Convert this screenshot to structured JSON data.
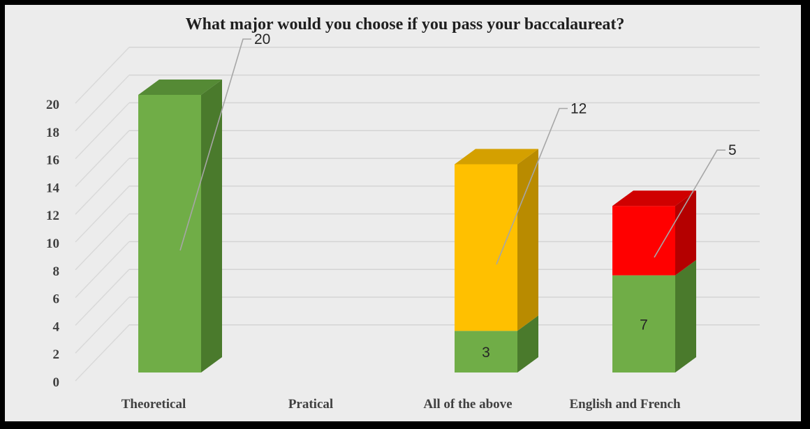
{
  "chart_data": {
    "type": "bar",
    "title": "What major would you choose if you pass your baccalaureat?",
    "xlabel": "",
    "ylabel": "",
    "ylim": [
      0,
      20
    ],
    "yticks": [
      0,
      2,
      4,
      6,
      8,
      10,
      12,
      14,
      16,
      18,
      20
    ],
    "categories": [
      "Theoretical",
      "Pratical",
      "All of the above",
      "English and French"
    ],
    "stacked": true,
    "grid": true,
    "legend": "none",
    "series": [
      {
        "color": "#70ad47",
        "side_color": "#4a7a2c",
        "top_color": "#558a35",
        "values": [
          20,
          0,
          3,
          7
        ]
      },
      {
        "color": "#ffc000",
        "side_color": "#b98b00",
        "top_color": "#d4a000",
        "values": [
          0,
          0,
          12,
          0
        ]
      },
      {
        "color": "#ff0000",
        "side_color": "#b40000",
        "top_color": "#d00000",
        "values": [
          0,
          0,
          0,
          5
        ]
      }
    ],
    "data_labels": [
      {
        "text": "20",
        "series": 0,
        "category": 0,
        "callout": true
      },
      {
        "text": "3",
        "series": 0,
        "category": 2,
        "callout": false
      },
      {
        "text": "7",
        "series": 0,
        "category": 3,
        "callout": false
      },
      {
        "text": "12",
        "series": 1,
        "category": 2,
        "callout": true
      },
      {
        "text": "5",
        "series": 2,
        "category": 3,
        "callout": true
      }
    ]
  }
}
